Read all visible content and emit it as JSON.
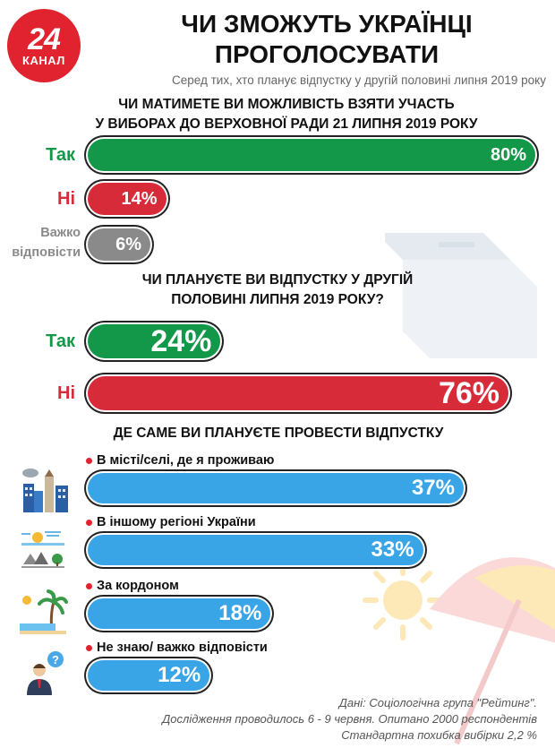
{
  "header": {
    "logo_number": "24",
    "logo_word": "КАНАЛ",
    "title_line1": "ЧИ ЗМОЖУТЬ УКРАЇНЦІ",
    "title_line2": "ПРОГОЛОСУВАТИ",
    "subtitle": "Серед тих, хто планує відпустку у другій половині липня 2019 року"
  },
  "chart_data": [
    {
      "type": "bar",
      "title": "ЧИ МАТИМЕТЕ ВИ МОЖЛИВІСТЬ ВЗЯТИ УЧАСТЬ У ВИБОРАХ ДО ВЕРХОВНОЇ РАДИ 21 ЛИПНЯ 2019 РОКУ",
      "title_line1": "ЧИ МАТИМЕТЕ ВИ МОЖЛИВІСТЬ ВЗЯТИ УЧАСТЬ",
      "title_line2": "У ВИБОРАХ ДО ВЕРХОВНОЇ РАДИ 21 ЛИПНЯ 2019 РОКУ",
      "categories": [
        "Так",
        "Ні",
        "Важко відповісти"
      ],
      "category_lines": [
        [
          "Так"
        ],
        [
          "Ні"
        ],
        [
          "Важко",
          "відповісти"
        ]
      ],
      "values": [
        80,
        14,
        6
      ],
      "value_labels": [
        "80%",
        "14%",
        "6%"
      ],
      "colors": [
        "#13984a",
        "#d82b3a",
        "#8a8a8a"
      ],
      "xlim": [
        0,
        100
      ]
    },
    {
      "type": "bar",
      "title": "ЧИ ПЛАНУЄТЕ ВИ ВІДПУСТКУ У ДРУГІЙ ПОЛОВИНІ ЛИПНЯ 2019 РОКУ?",
      "title_line1": "ЧИ ПЛАНУЄТЕ ВИ ВІДПУСТКУ У ДРУГІЙ",
      "title_line2": "ПОЛОВИНІ ЛИПНЯ 2019 РОКУ?",
      "categories": [
        "Так",
        "Ні"
      ],
      "values": [
        24,
        76
      ],
      "value_labels": [
        "24%",
        "76%"
      ],
      "colors": [
        "#13984a",
        "#d82b3a"
      ],
      "xlim": [
        0,
        100
      ]
    },
    {
      "type": "bar",
      "title": "ДЕ САМЕ ВИ ПЛАНУЄТЕ ПРОВЕСТИ ВІДПУСТКУ",
      "categories": [
        "В місті/селі, де я проживаю",
        "В іншому регіоні України",
        "За кордоном",
        "Не знаю/ важко відповісти"
      ],
      "values": [
        37,
        33,
        18,
        12
      ],
      "value_labels": [
        "37%",
        "33%",
        "18%",
        "12%"
      ],
      "icons": [
        "city-icon",
        "travel-landscape-icon",
        "beach-palm-icon",
        "confused-person-icon"
      ],
      "colors": [
        "#3aa5e6",
        "#3aa5e6",
        "#3aa5e6",
        "#3aa5e6"
      ],
      "xlim": [
        0,
        100
      ]
    }
  ],
  "footer": {
    "line1": "Дані: Соціологічна група \"Рейтинг\".",
    "line2": "Дослідження проводилось 6 - 9 червня. Опитано 2000 респондентів",
    "line3": "Стандартна похибка вибірки 2,2 %"
  },
  "colors": {
    "brand": "#e0232e",
    "yes": "#13984a",
    "no": "#d82b3a",
    "unsure": "#8a8a8a",
    "location": "#3aa5e6"
  }
}
